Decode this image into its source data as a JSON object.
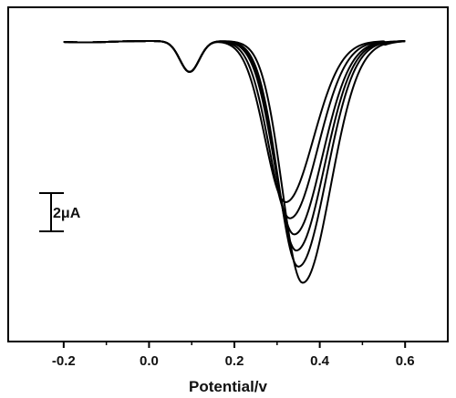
{
  "chart_data": {
    "type": "line",
    "xlabel": "Potential/v",
    "ylabel": "",
    "xlim": [
      -0.33,
      0.7
    ],
    "ylim": [
      0,
      1
    ],
    "x_ticks": [
      -0.2,
      0.0,
      0.2,
      0.4,
      0.6
    ],
    "x_tick_labels": [
      "-0.2",
      "0.0",
      "0.2",
      "0.4",
      "0.6"
    ],
    "y_axis_numeric": false,
    "scale_bar": {
      "label": "2μA",
      "value": 2,
      "unit": "μA"
    },
    "line_color": "#000000",
    "series": [
      {
        "peak_potential": 0.32,
        "peak_depth": 0.6
      },
      {
        "peak_potential": 0.33,
        "peak_depth": 0.66
      },
      {
        "peak_potential": 0.34,
        "peak_depth": 0.72
      },
      {
        "peak_potential": 0.345,
        "peak_depth": 0.78
      },
      {
        "peak_potential": 0.35,
        "peak_depth": 0.84
      },
      {
        "peak_potential": 0.36,
        "peak_depth": 0.9
      }
    ]
  }
}
